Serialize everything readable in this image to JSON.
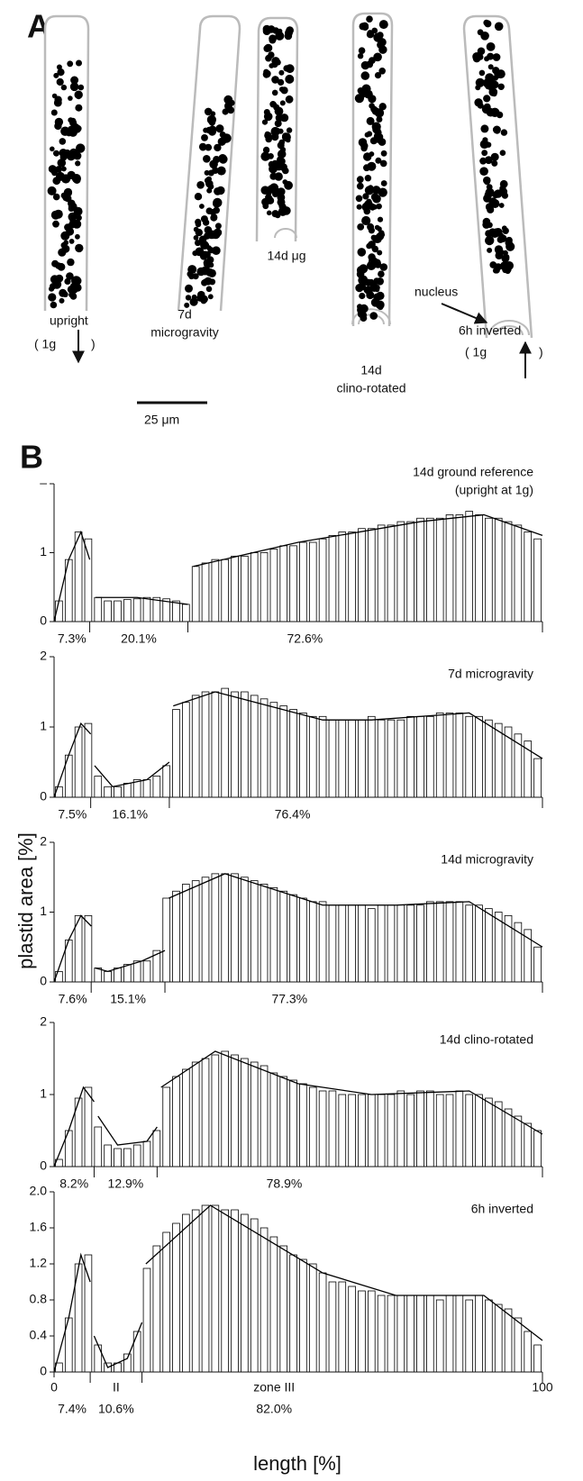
{
  "panel_a": {
    "label": "A",
    "labels": [
      "upright",
      "( 1g",
      ")",
      "7d",
      "microgravity",
      "14d μg",
      "nucleus",
      "14d",
      "clino-rotated",
      "6h inverted",
      "( 1g",
      ")"
    ],
    "scale_bar": "25 μm"
  },
  "panel_b": {
    "label": "B",
    "ylabel": "plastid area [%]",
    "xlabel": "length [%]"
  },
  "chart_data": [
    {
      "type": "bar",
      "title": "14d ground reference",
      "subtitle": "(upright at 1g)",
      "xlim": [
        0,
        100
      ],
      "ylim": [
        0,
        2
      ],
      "yticks": [
        0,
        1,
        {
          "value": 2,
          "label": "–"
        }
      ],
      "zone_widths": [
        7.3,
        20.1,
        72.6
      ],
      "zone_labels": [
        "7.3%",
        "20.1%",
        "72.6%"
      ],
      "series": [
        {
          "type": "bar",
          "color": "#000000",
          "x": [
            1,
            3,
            5,
            7,
            9,
            11,
            13,
            15,
            17,
            19,
            21,
            23,
            25,
            27,
            29,
            31,
            33,
            35,
            37,
            39,
            41,
            43,
            45,
            47,
            49,
            51,
            53,
            55,
            57,
            59,
            61,
            63,
            65,
            67,
            69,
            71,
            73,
            75,
            77,
            79,
            81,
            83,
            85,
            87,
            89,
            91,
            93,
            95,
            97,
            99
          ],
          "values": [
            0.3,
            0.9,
            1.3,
            1.2,
            0.35,
            0.3,
            0.3,
            0.32,
            0.33,
            0.35,
            0.35,
            0.33,
            0.3,
            0.25,
            0.8,
            0.85,
            0.9,
            0.9,
            0.95,
            0.95,
            1.0,
            1.0,
            1.05,
            1.1,
            1.1,
            1.15,
            1.15,
            1.2,
            1.25,
            1.3,
            1.3,
            1.35,
            1.35,
            1.4,
            1.4,
            1.45,
            1.45,
            1.5,
            1.5,
            1.5,
            1.55,
            1.55,
            1.6,
            1.55,
            1.5,
            1.5,
            1.45,
            1.4,
            1.3,
            1.2
          ]
        },
        {
          "type": "line",
          "color": "#000000",
          "x": [
            0,
            3,
            5.5,
            7.3,
            7.8,
            8.5,
            17,
            27.4,
            27.8,
            28.5,
            50,
            75,
            88,
            100
          ],
          "values": [
            0,
            0.9,
            1.3,
            0.9,
            null,
            0.35,
            0.35,
            0.25,
            null,
            0.8,
            1.15,
            1.45,
            1.55,
            1.25
          ]
        }
      ]
    },
    {
      "type": "bar",
      "title": "7d microgravity",
      "xlim": [
        0,
        100
      ],
      "ylim": [
        0,
        2
      ],
      "yticks": [
        0,
        1,
        2
      ],
      "zone_widths": [
        7.5,
        16.1,
        76.4
      ],
      "zone_labels": [
        "7.5%",
        "16.1%",
        "76.4%"
      ],
      "series": [
        {
          "type": "bar",
          "color": "#000000",
          "x": [
            1,
            3,
            5,
            7,
            9,
            11,
            13,
            15,
            17,
            19,
            21,
            23,
            25,
            27,
            29,
            31,
            33,
            35,
            37,
            39,
            41,
            43,
            45,
            47,
            49,
            51,
            53,
            55,
            57,
            59,
            61,
            63,
            65,
            67,
            69,
            71,
            73,
            75,
            77,
            79,
            81,
            83,
            85,
            87,
            89,
            91,
            93,
            95,
            97,
            99
          ],
          "values": [
            0.15,
            0.6,
            1.0,
            1.05,
            0.3,
            0.15,
            0.15,
            0.2,
            0.25,
            0.25,
            0.3,
            0.45,
            1.25,
            1.35,
            1.45,
            1.5,
            1.5,
            1.55,
            1.5,
            1.5,
            1.45,
            1.4,
            1.35,
            1.3,
            1.25,
            1.2,
            1.15,
            1.15,
            1.1,
            1.1,
            1.1,
            1.1,
            1.15,
            1.1,
            1.1,
            1.1,
            1.15,
            1.15,
            1.15,
            1.2,
            1.2,
            1.2,
            1.15,
            1.15,
            1.1,
            1.05,
            1.0,
            0.9,
            0.8,
            0.55
          ]
        },
        {
          "type": "line",
          "color": "#000000",
          "x": [
            0,
            3,
            5.5,
            7.5,
            7.9,
            8.3,
            12,
            19,
            23.6,
            24,
            24.4,
            33,
            55,
            65,
            85,
            100
          ],
          "values": [
            0,
            0.6,
            1.05,
            0.9,
            null,
            0.45,
            0.15,
            0.25,
            0.5,
            null,
            1.3,
            1.5,
            1.1,
            1.1,
            1.2,
            0.55
          ]
        }
      ]
    },
    {
      "type": "bar",
      "title": "14d microgravity",
      "xlim": [
        0,
        100
      ],
      "ylim": [
        0,
        2
      ],
      "yticks": [
        0,
        1,
        2
      ],
      "zone_widths": [
        7.6,
        15.1,
        77.3
      ],
      "zone_labels": [
        "7.6%",
        "15.1%",
        "77.3%"
      ],
      "series": [
        {
          "type": "bar",
          "color": "#000000",
          "x": [
            1,
            3,
            5,
            7,
            9,
            11,
            13,
            15,
            17,
            19,
            21,
            23,
            25,
            27,
            29,
            31,
            33,
            35,
            37,
            39,
            41,
            43,
            45,
            47,
            49,
            51,
            53,
            55,
            57,
            59,
            61,
            63,
            65,
            67,
            69,
            71,
            73,
            75,
            77,
            79,
            81,
            83,
            85,
            87,
            89,
            91,
            93,
            95,
            97,
            99
          ],
          "values": [
            0.15,
            0.6,
            0.95,
            0.95,
            0.2,
            0.15,
            0.2,
            0.25,
            0.3,
            0.3,
            0.45,
            1.2,
            1.3,
            1.4,
            1.45,
            1.5,
            1.55,
            1.55,
            1.55,
            1.5,
            1.45,
            1.4,
            1.35,
            1.3,
            1.25,
            1.2,
            1.15,
            1.15,
            1.1,
            1.1,
            1.1,
            1.1,
            1.05,
            1.1,
            1.1,
            1.1,
            1.1,
            1.1,
            1.15,
            1.15,
            1.15,
            1.15,
            1.1,
            1.1,
            1.05,
            1.0,
            0.95,
            0.85,
            0.75,
            0.5
          ]
        },
        {
          "type": "line",
          "color": "#000000",
          "x": [
            0,
            3,
            5.5,
            7.6,
            8,
            8.4,
            11,
            18,
            22.7,
            23.1,
            23.5,
            35,
            55,
            70,
            85,
            100
          ],
          "values": [
            0,
            0.6,
            0.95,
            0.8,
            null,
            0.2,
            0.15,
            0.3,
            0.45,
            null,
            1.2,
            1.55,
            1.1,
            1.1,
            1.15,
            0.5
          ]
        }
      ]
    },
    {
      "type": "bar",
      "title": "14d clino-rotated",
      "xlim": [
        0,
        100
      ],
      "ylim": [
        0,
        2
      ],
      "yticks": [
        0,
        1,
        2
      ],
      "zone_widths": [
        8.2,
        12.9,
        78.9
      ],
      "zone_labels": [
        "8.2%",
        "12.9%",
        "78.9%"
      ],
      "series": [
        {
          "type": "bar",
          "color": "#000000",
          "x": [
            1,
            3,
            5,
            7,
            9,
            11,
            13,
            15,
            17,
            19,
            21,
            23,
            25,
            27,
            29,
            31,
            33,
            35,
            37,
            39,
            41,
            43,
            45,
            47,
            49,
            51,
            53,
            55,
            57,
            59,
            61,
            63,
            65,
            67,
            69,
            71,
            73,
            75,
            77,
            79,
            81,
            83,
            85,
            87,
            89,
            91,
            93,
            95,
            97,
            99
          ],
          "values": [
            0.1,
            0.5,
            0.95,
            1.1,
            0.55,
            0.3,
            0.25,
            0.25,
            0.3,
            0.35,
            0.5,
            1.1,
            1.25,
            1.35,
            1.45,
            1.5,
            1.55,
            1.6,
            1.55,
            1.5,
            1.45,
            1.4,
            1.3,
            1.25,
            1.2,
            1.15,
            1.1,
            1.05,
            1.05,
            1.0,
            1.0,
            1.0,
            1.0,
            1.0,
            1.0,
            1.05,
            1.0,
            1.05,
            1.05,
            1.0,
            1.0,
            1.05,
            1.0,
            1.0,
            0.95,
            0.9,
            0.8,
            0.7,
            0.6,
            0.5
          ]
        },
        {
          "type": "line",
          "color": "#000000",
          "x": [
            0,
            3,
            6,
            8.2,
            8.6,
            9,
            13,
            19,
            21.1,
            21.5,
            21.9,
            33,
            50,
            65,
            85,
            100
          ],
          "values": [
            0,
            0.5,
            1.1,
            0.9,
            null,
            0.7,
            0.3,
            0.35,
            0.55,
            null,
            1.1,
            1.6,
            1.15,
            1.0,
            1.05,
            0.45
          ]
        }
      ]
    },
    {
      "type": "bar",
      "title": "6h inverted",
      "xlim": [
        0,
        100
      ],
      "xticks": [
        0,
        100
      ],
      "ylim": [
        0,
        2
      ],
      "yticks": [
        0,
        0.4,
        0.8,
        1.2,
        1.6,
        {
          "value": 2,
          "label": "2.0"
        }
      ],
      "zone_widths": [
        7.4,
        10.6,
        82.0
      ],
      "zone_labels": [
        "7.4%",
        "10.6%",
        "82.0%"
      ],
      "zone_names": [
        null,
        "II",
        "zone III"
      ],
      "series": [
        {
          "type": "bar",
          "color": "#000000",
          "x": [
            1,
            3,
            5,
            7,
            9,
            11,
            13,
            15,
            17,
            19,
            21,
            23,
            25,
            27,
            29,
            31,
            33,
            35,
            37,
            39,
            41,
            43,
            45,
            47,
            49,
            51,
            53,
            55,
            57,
            59,
            61,
            63,
            65,
            67,
            69,
            71,
            73,
            75,
            77,
            79,
            81,
            83,
            85,
            87,
            89,
            91,
            93,
            95,
            97,
            99
          ],
          "values": [
            0.1,
            0.6,
            1.2,
            1.3,
            0.3,
            0.1,
            0.1,
            0.2,
            0.45,
            1.15,
            1.4,
            1.55,
            1.65,
            1.75,
            1.8,
            1.85,
            1.85,
            1.8,
            1.8,
            1.75,
            1.7,
            1.6,
            1.5,
            1.4,
            1.3,
            1.25,
            1.2,
            1.1,
            1.0,
            1.0,
            0.95,
            0.9,
            0.9,
            0.85,
            0.85,
            0.85,
            0.85,
            0.85,
            0.85,
            0.8,
            0.85,
            0.85,
            0.8,
            0.85,
            0.8,
            0.75,
            0.7,
            0.6,
            0.45,
            0.3
          ]
        },
        {
          "type": "line",
          "color": "#000000",
          "x": [
            0,
            3,
            5.5,
            7.4,
            7.8,
            8.2,
            11,
            15,
            18,
            18.4,
            18.8,
            32,
            55,
            70,
            88,
            100
          ],
          "values": [
            0,
            0.6,
            1.3,
            1.0,
            null,
            0.4,
            0.05,
            0.15,
            0.55,
            null,
            1.2,
            1.85,
            1.1,
            0.85,
            0.85,
            0.35
          ]
        }
      ]
    }
  ]
}
